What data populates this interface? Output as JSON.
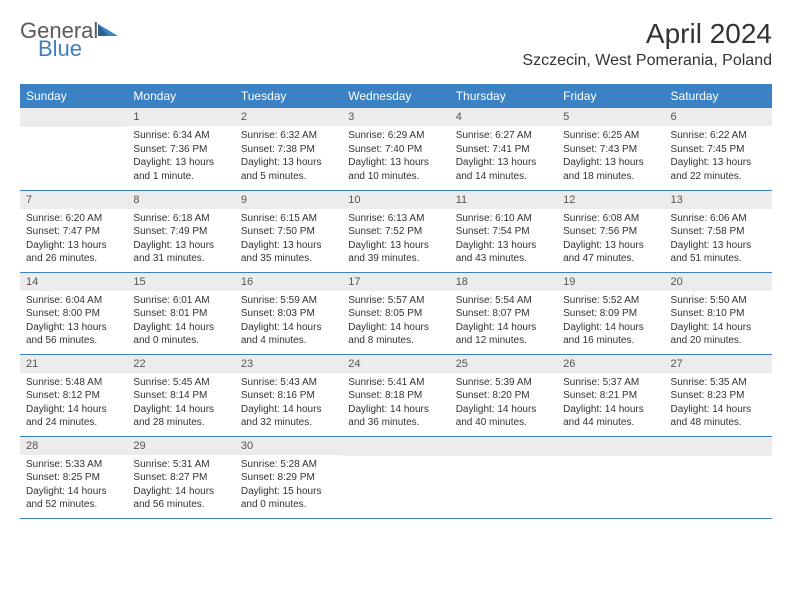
{
  "logo": {
    "text1": "General",
    "text2": "Blue"
  },
  "title": "April 2024",
  "location": "Szczecin, West Pomerania, Poland",
  "header_bg": "#3b82c4",
  "header_fg": "#ffffff",
  "daynum_bg": "#ececec",
  "border_color": "#3b82c4",
  "weekdays": [
    "Sunday",
    "Monday",
    "Tuesday",
    "Wednesday",
    "Thursday",
    "Friday",
    "Saturday"
  ],
  "weeks": [
    [
      null,
      {
        "n": "1",
        "sr": "6:34 AM",
        "ss": "7:36 PM",
        "dl": "13 hours and 1 minute."
      },
      {
        "n": "2",
        "sr": "6:32 AM",
        "ss": "7:38 PM",
        "dl": "13 hours and 5 minutes."
      },
      {
        "n": "3",
        "sr": "6:29 AM",
        "ss": "7:40 PM",
        "dl": "13 hours and 10 minutes."
      },
      {
        "n": "4",
        "sr": "6:27 AM",
        "ss": "7:41 PM",
        "dl": "13 hours and 14 minutes."
      },
      {
        "n": "5",
        "sr": "6:25 AM",
        "ss": "7:43 PM",
        "dl": "13 hours and 18 minutes."
      },
      {
        "n": "6",
        "sr": "6:22 AM",
        "ss": "7:45 PM",
        "dl": "13 hours and 22 minutes."
      }
    ],
    [
      {
        "n": "7",
        "sr": "6:20 AM",
        "ss": "7:47 PM",
        "dl": "13 hours and 26 minutes."
      },
      {
        "n": "8",
        "sr": "6:18 AM",
        "ss": "7:49 PM",
        "dl": "13 hours and 31 minutes."
      },
      {
        "n": "9",
        "sr": "6:15 AM",
        "ss": "7:50 PM",
        "dl": "13 hours and 35 minutes."
      },
      {
        "n": "10",
        "sr": "6:13 AM",
        "ss": "7:52 PM",
        "dl": "13 hours and 39 minutes."
      },
      {
        "n": "11",
        "sr": "6:10 AM",
        "ss": "7:54 PM",
        "dl": "13 hours and 43 minutes."
      },
      {
        "n": "12",
        "sr": "6:08 AM",
        "ss": "7:56 PM",
        "dl": "13 hours and 47 minutes."
      },
      {
        "n": "13",
        "sr": "6:06 AM",
        "ss": "7:58 PM",
        "dl": "13 hours and 51 minutes."
      }
    ],
    [
      {
        "n": "14",
        "sr": "6:04 AM",
        "ss": "8:00 PM",
        "dl": "13 hours and 56 minutes."
      },
      {
        "n": "15",
        "sr": "6:01 AM",
        "ss": "8:01 PM",
        "dl": "14 hours and 0 minutes."
      },
      {
        "n": "16",
        "sr": "5:59 AM",
        "ss": "8:03 PM",
        "dl": "14 hours and 4 minutes."
      },
      {
        "n": "17",
        "sr": "5:57 AM",
        "ss": "8:05 PM",
        "dl": "14 hours and 8 minutes."
      },
      {
        "n": "18",
        "sr": "5:54 AM",
        "ss": "8:07 PM",
        "dl": "14 hours and 12 minutes."
      },
      {
        "n": "19",
        "sr": "5:52 AM",
        "ss": "8:09 PM",
        "dl": "14 hours and 16 minutes."
      },
      {
        "n": "20",
        "sr": "5:50 AM",
        "ss": "8:10 PM",
        "dl": "14 hours and 20 minutes."
      }
    ],
    [
      {
        "n": "21",
        "sr": "5:48 AM",
        "ss": "8:12 PM",
        "dl": "14 hours and 24 minutes."
      },
      {
        "n": "22",
        "sr": "5:45 AM",
        "ss": "8:14 PM",
        "dl": "14 hours and 28 minutes."
      },
      {
        "n": "23",
        "sr": "5:43 AM",
        "ss": "8:16 PM",
        "dl": "14 hours and 32 minutes."
      },
      {
        "n": "24",
        "sr": "5:41 AM",
        "ss": "8:18 PM",
        "dl": "14 hours and 36 minutes."
      },
      {
        "n": "25",
        "sr": "5:39 AM",
        "ss": "8:20 PM",
        "dl": "14 hours and 40 minutes."
      },
      {
        "n": "26",
        "sr": "5:37 AM",
        "ss": "8:21 PM",
        "dl": "14 hours and 44 minutes."
      },
      {
        "n": "27",
        "sr": "5:35 AM",
        "ss": "8:23 PM",
        "dl": "14 hours and 48 minutes."
      }
    ],
    [
      {
        "n": "28",
        "sr": "5:33 AM",
        "ss": "8:25 PM",
        "dl": "14 hours and 52 minutes."
      },
      {
        "n": "29",
        "sr": "5:31 AM",
        "ss": "8:27 PM",
        "dl": "14 hours and 56 minutes."
      },
      {
        "n": "30",
        "sr": "5:28 AM",
        "ss": "8:29 PM",
        "dl": "15 hours and 0 minutes."
      },
      null,
      null,
      null,
      null
    ]
  ],
  "labels": {
    "sunrise": "Sunrise:",
    "sunset": "Sunset:",
    "daylight": "Daylight:"
  }
}
